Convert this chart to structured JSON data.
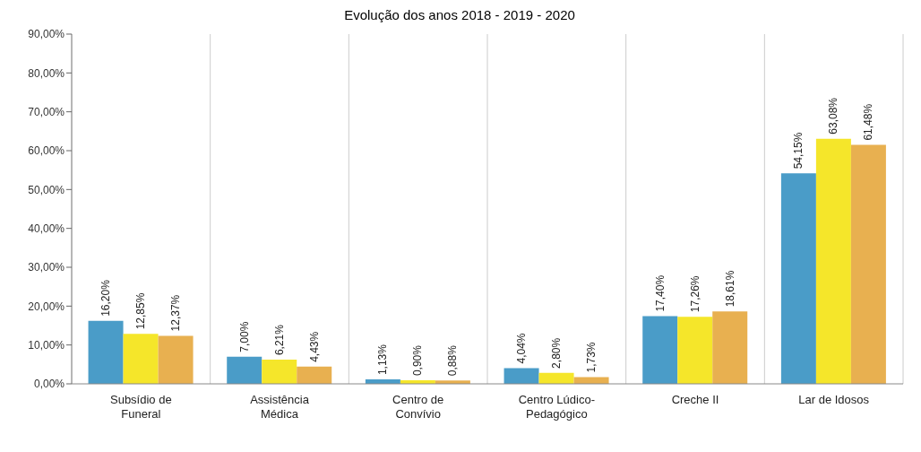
{
  "chart_data": {
    "type": "bar",
    "title": "Evolução dos anos 2018 - 2019 - 2020",
    "categories": [
      "Subsídio de Funeral",
      "Assistência Médica",
      "Centro de Convívio",
      "Centro Lúdico-Pedagógico",
      "Creche II",
      "Lar de Idosos"
    ],
    "series": [
      {
        "color": "#4a9cc8",
        "values": [
          16.2,
          7.0,
          1.13,
          4.04,
          17.4,
          54.15
        ],
        "value_labels": [
          "16,20%",
          "7,00%",
          "1,13%",
          "4,04%",
          "17,40%",
          "54,15%"
        ]
      },
      {
        "color": "#f5e62a",
        "values": [
          12.85,
          6.21,
          0.9,
          2.8,
          17.26,
          63.08
        ],
        "value_labels": [
          "12,85%",
          "6,21%",
          "0,90%",
          "2,80%",
          "17,26%",
          "63,08%"
        ]
      },
      {
        "color": "#e8b050",
        "values": [
          12.37,
          4.43,
          0.88,
          1.73,
          18.61,
          61.48
        ],
        "value_labels": [
          "12,37%",
          "4,43%",
          "0,88%",
          "1,73%",
          "18,61%",
          "61,48%"
        ]
      }
    ],
    "ylim": [
      0,
      90
    ],
    "yticks": [
      {
        "value": 0,
        "label": "0,00%"
      },
      {
        "value": 10,
        "label": "10,00%"
      },
      {
        "value": 20,
        "label": "20,00%"
      },
      {
        "value": 30,
        "label": "30,00%"
      },
      {
        "value": 40,
        "label": "40,00%"
      },
      {
        "value": 50,
        "label": "50,00%"
      },
      {
        "value": 60,
        "label": "60,00%"
      },
      {
        "value": 70,
        "label": "70,00%"
      },
      {
        "value": 80,
        "label": "80,00%"
      },
      {
        "value": 90,
        "label": "90,00%"
      }
    ],
    "grid": "x"
  }
}
